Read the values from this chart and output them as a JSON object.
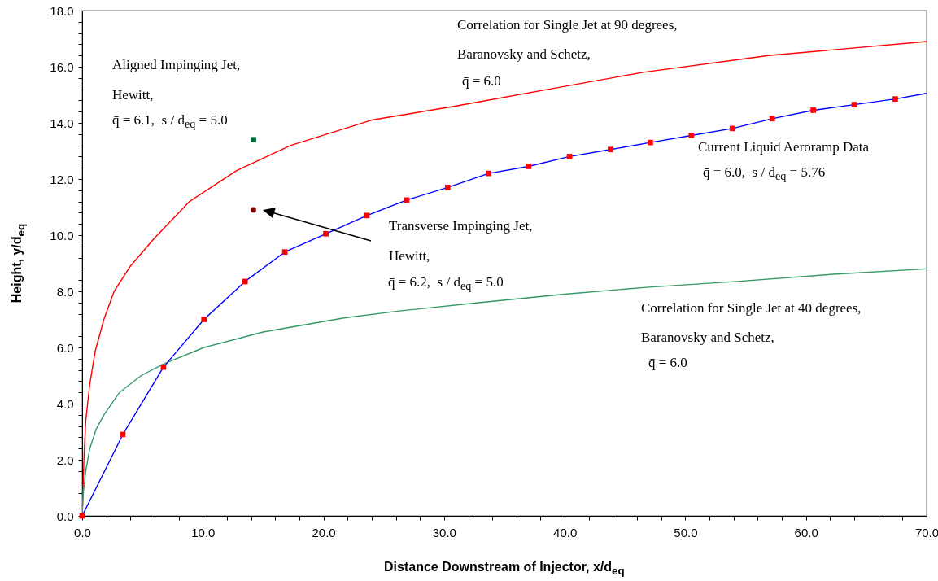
{
  "chart_data": {
    "type": "line",
    "xlabel": "Distance Downstream of Injector, x/d$_{eq}$",
    "ylabel": "Height, y/d$_{eq}$",
    "xlim": [
      0,
      70
    ],
    "ylim": [
      0,
      18
    ],
    "xticks": [
      {
        "value": 0,
        "label": "0.0"
      },
      {
        "value": 2,
        "label": null
      },
      {
        "value": 4,
        "label": null
      },
      {
        "value": 6,
        "label": null
      },
      {
        "value": 8,
        "label": null
      },
      {
        "value": 10,
        "label": "10.0"
      },
      {
        "value": 12,
        "label": null
      },
      {
        "value": 14,
        "label": null
      },
      {
        "value": 16,
        "label": null
      },
      {
        "value": 18,
        "label": null
      },
      {
        "value": 20,
        "label": "20.0"
      },
      {
        "value": 22,
        "label": null
      },
      {
        "value": 24,
        "label": null
      },
      {
        "value": 26,
        "label": null
      },
      {
        "value": 28,
        "label": null
      },
      {
        "value": 30,
        "label": "30.0"
      },
      {
        "value": 32,
        "label": null
      },
      {
        "value": 34,
        "label": null
      },
      {
        "value": 36,
        "label": null
      },
      {
        "value": 38,
        "label": null
      },
      {
        "value": 40,
        "label": "40.0"
      },
      {
        "value": 42,
        "label": null
      },
      {
        "value": 44,
        "label": null
      },
      {
        "value": 46,
        "label": null
      },
      {
        "value": 48,
        "label": null
      },
      {
        "value": 50,
        "label": "50.0"
      },
      {
        "value": 52,
        "label": null
      },
      {
        "value": 54,
        "label": null
      },
      {
        "value": 56,
        "label": null
      },
      {
        "value": 58,
        "label": null
      },
      {
        "value": 60,
        "label": "60.0"
      },
      {
        "value": 62,
        "label": null
      },
      {
        "value": 64,
        "label": null
      },
      {
        "value": 66,
        "label": null
      },
      {
        "value": 68,
        "label": null
      },
      {
        "value": 70,
        "label": "70.0"
      }
    ],
    "yticks": [
      {
        "value": 0,
        "label": "0.0"
      },
      {
        "value": 0.4,
        "label": null
      },
      {
        "value": 0.8,
        "label": null
      },
      {
        "value": 1.2,
        "label": null
      },
      {
        "value": 1.6,
        "label": null
      },
      {
        "value": 2,
        "label": "2.0"
      },
      {
        "value": 2.4,
        "label": null
      },
      {
        "value": 2.8,
        "label": null
      },
      {
        "value": 3.2,
        "label": null
      },
      {
        "value": 3.6,
        "label": null
      },
      {
        "value": 4,
        "label": "4.0"
      },
      {
        "value": 4.4,
        "label": null
      },
      {
        "value": 4.8,
        "label": null
      },
      {
        "value": 5.2,
        "label": null
      },
      {
        "value": 5.6,
        "label": null
      },
      {
        "value": 6,
        "label": "6.0"
      },
      {
        "value": 6.4,
        "label": null
      },
      {
        "value": 6.8,
        "label": null
      },
      {
        "value": 7.2,
        "label": null
      },
      {
        "value": 7.6,
        "label": null
      },
      {
        "value": 8,
        "label": "8.0"
      },
      {
        "value": 8.4,
        "label": null
      },
      {
        "value": 8.8,
        "label": null
      },
      {
        "value": 9.2,
        "label": null
      },
      {
        "value": 9.6,
        "label": null
      },
      {
        "value": 10,
        "label": "10.0"
      },
      {
        "value": 10.4,
        "label": null
      },
      {
        "value": 10.8,
        "label": null
      },
      {
        "value": 11.2,
        "label": null
      },
      {
        "value": 11.6,
        "label": null
      },
      {
        "value": 12,
        "label": "12.0"
      },
      {
        "value": 12.4,
        "label": null
      },
      {
        "value": 12.8,
        "label": null
      },
      {
        "value": 13.2,
        "label": null
      },
      {
        "value": 13.6,
        "label": null
      },
      {
        "value": 14,
        "label": "14.0"
      },
      {
        "value": 14.4,
        "label": null
      },
      {
        "value": 14.8,
        "label": null
      },
      {
        "value": 15.2,
        "label": null
      },
      {
        "value": 15.6,
        "label": null
      },
      {
        "value": 16,
        "label": "16.0"
      },
      {
        "value": 16.4,
        "label": null
      },
      {
        "value": 16.8,
        "label": null
      },
      {
        "value": 17.2,
        "label": null
      },
      {
        "value": 17.6,
        "label": null
      },
      {
        "value": 18,
        "label": "18.0"
      }
    ],
    "series": [
      {
        "type": "line",
        "color": "#ff0000",
        "x": [
          0,
          0.1,
          0.16,
          0.3,
          0.63,
          1.1,
          1.8,
          2.65,
          4,
          6,
          8.9,
          12.8,
          17.3,
          24,
          31,
          40,
          46.5,
          56.9,
          70
        ],
        "values": [
          0,
          1.4,
          2.2,
          3.4,
          4.7,
          5.9,
          7.0,
          8.0,
          8.9,
          9.9,
          11.2,
          12.3,
          13.2,
          14.1,
          14.6,
          15.3,
          15.8,
          16.4,
          16.9
        ]
      },
      {
        "type": "line",
        "color": "#339966",
        "x": [
          0,
          0.09,
          0.3,
          0.63,
          1.17,
          1.8,
          3.1,
          4.9,
          6.7,
          10.1,
          15,
          21.7,
          26.3,
          33,
          40,
          47,
          54.3,
          62,
          70
        ],
        "values": [
          0,
          0.8,
          1.6,
          2.4,
          3.1,
          3.6,
          4.4,
          5.0,
          5.4,
          6.0,
          6.55,
          7.05,
          7.3,
          7.6,
          7.9,
          8.15,
          8.35,
          8.6,
          8.8
        ]
      },
      {
        "type": "line",
        "color": "#0000ff",
        "x": [
          0,
          3.37,
          6.74,
          10.1,
          13.5,
          16.8,
          20.2,
          23.6,
          26.9,
          30.3,
          33.7,
          37,
          40.4,
          43.8,
          47.1,
          50.5,
          53.9,
          57.2,
          60.6,
          64,
          67.4,
          70
        ],
        "values": [
          0,
          2.9,
          5.3,
          7.0,
          8.35,
          9.4,
          10.05,
          10.7,
          11.25,
          11.7,
          12.2,
          12.45,
          12.8,
          13.05,
          13.3,
          13.55,
          13.8,
          14.15,
          14.45,
          14.65,
          14.85,
          15.05
        ]
      },
      {
        "type": "scatter",
        "marker": "square",
        "color": "#ff0000",
        "x": [
          0,
          3.37,
          6.74,
          10.1,
          13.5,
          16.8,
          20.2,
          23.6,
          26.9,
          30.3,
          33.7,
          37,
          40.4,
          43.8,
          47.1,
          50.5,
          53.9,
          57.2,
          60.6,
          64,
          67.4
        ],
        "values": [
          0,
          2.9,
          5.3,
          7.0,
          8.35,
          9.4,
          10.05,
          10.7,
          11.25,
          11.7,
          12.2,
          12.45,
          12.8,
          13.05,
          13.3,
          13.55,
          13.8,
          14.15,
          14.45,
          14.65,
          14.85
        ]
      },
      {
        "type": "scatter",
        "marker": "square",
        "color": "#006633",
        "x": [
          14.2
        ],
        "values": [
          13.4
        ]
      },
      {
        "type": "scatter",
        "marker": "circle",
        "color": "#800000",
        "x": [
          14.2
        ],
        "values": [
          10.9
        ]
      }
    ],
    "annotations": [
      "Correlation for Single Jet at 90 degrees,",
      "Baranovsky and Schetz,",
      "q̄ = 6.0",
      "Aligned Impinging Jet,",
      "Hewitt,",
      "q̄ = 6.1,  s / d$_{eq}$ = 5.0",
      "Current Liquid Aeroramp Data",
      "q̄ = 6.0,  s / d$_{eq}$ = 5.76",
      "Transverse Impinging Jet,",
      "Hewitt,",
      "q̄ = 6.2,  s / d$_{eq}$ = 5.0",
      "Correlation for Single Jet at 40 degrees,",
      "Baranovsky and Schetz,",
      "q̄ = 6.0"
    ]
  }
}
